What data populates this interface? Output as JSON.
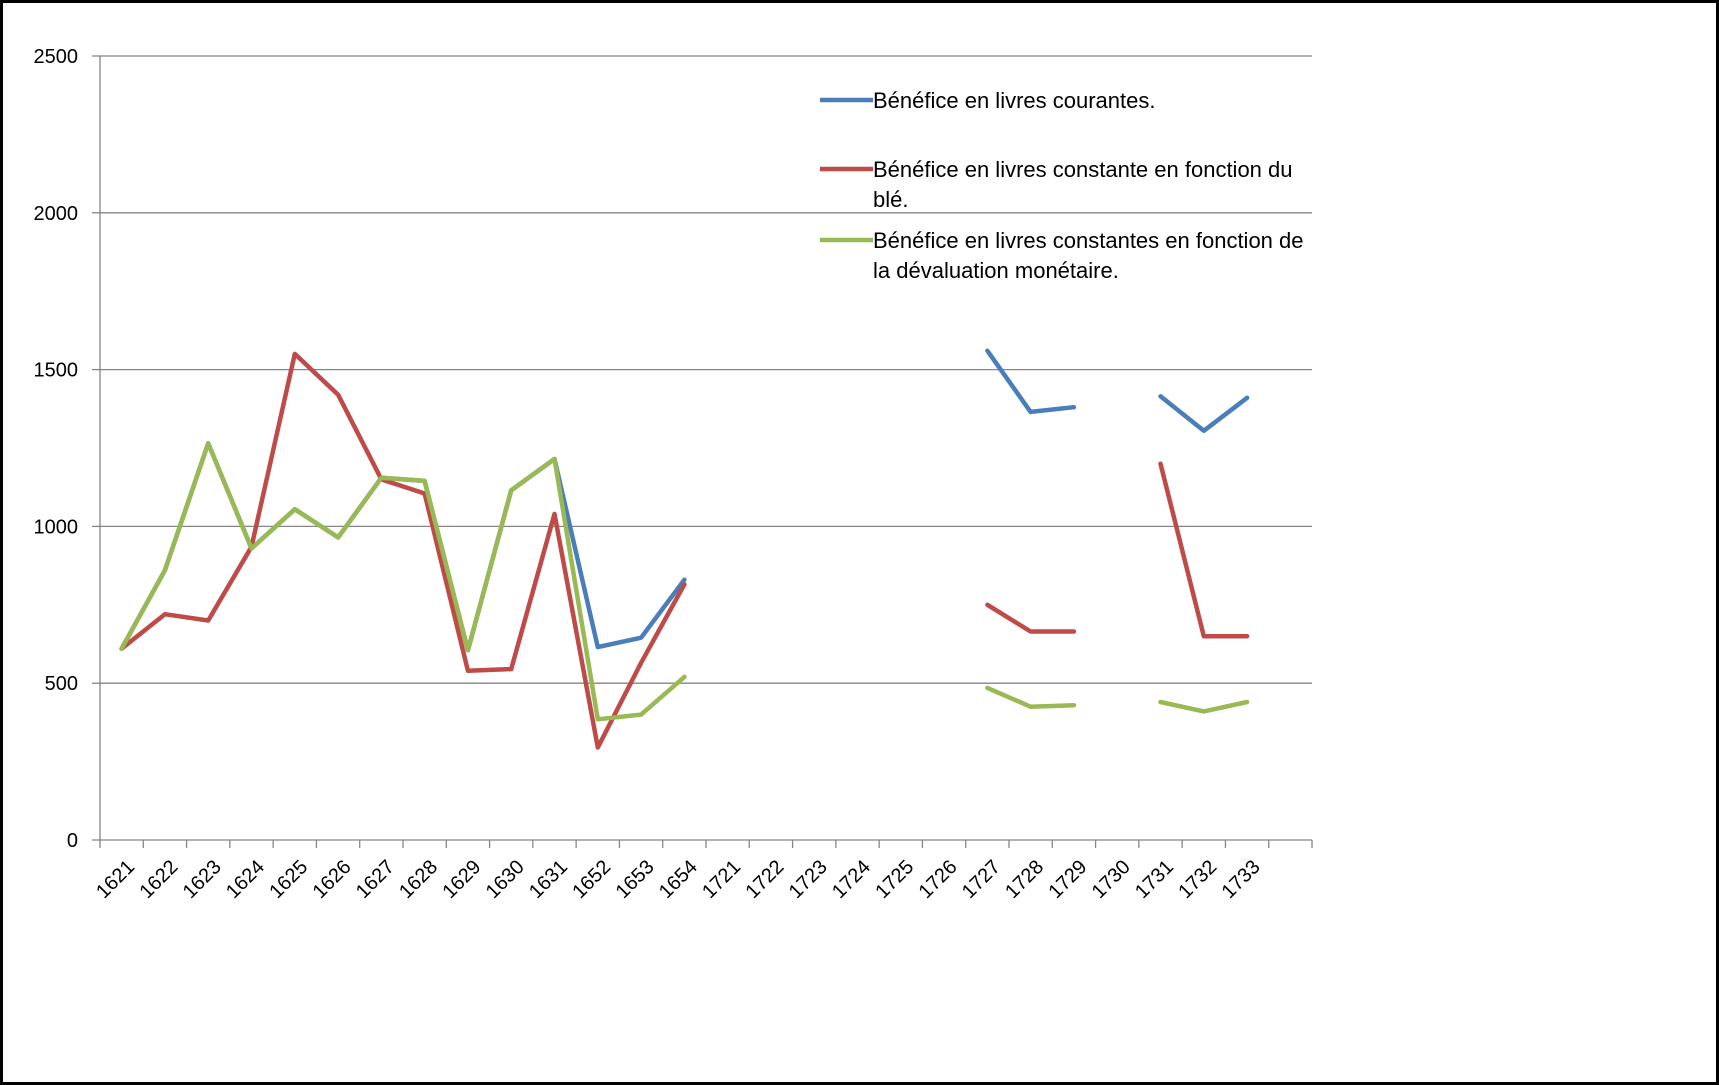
{
  "chart_data": {
    "type": "line",
    "categories": [
      "1621",
      "1622",
      "1623",
      "1624",
      "1625",
      "1626",
      "1627",
      "1628",
      "1629",
      "1630",
      "1631",
      "1652",
      "1653",
      "1654",
      "1721",
      "1722",
      "1723",
      "1724",
      "1725",
      "1726",
      "1727",
      "1728",
      "1729",
      "1730",
      "1731",
      "1732",
      "1733"
    ],
    "ylim": [
      0,
      2500
    ],
    "yticks": [
      0,
      500,
      1000,
      1500,
      2000,
      2500
    ],
    "grid": true,
    "legend_position": "top-right",
    "series": [
      {
        "name": "Bénéfice en livres courantes.",
        "name_lines": [
          "Bénéfice en livres courantes."
        ],
        "color": "#4a7ebb",
        "values": [
          610,
          860,
          1265,
          930,
          1055,
          965,
          1155,
          1145,
          605,
          1115,
          1215,
          615,
          645,
          830,
          null,
          null,
          null,
          null,
          null,
          null,
          1560,
          1365,
          1380,
          null,
          1415,
          1305,
          1410
        ]
      },
      {
        "name": "Bénéfice en livres constante en fonction du blé.",
        "name_lines": [
          "Bénéfice en livres constante en fonction du",
          "blé."
        ],
        "color": "#be4b48",
        "values": [
          610,
          720,
          700,
          935,
          1550,
          1420,
          1150,
          1105,
          540,
          545,
          1040,
          295,
          565,
          815,
          null,
          null,
          null,
          null,
          null,
          null,
          750,
          665,
          665,
          null,
          1200,
          650,
          650
        ]
      },
      {
        "name": "Bénéfice en livres constantes en fonction de la dévaluation monétaire.",
        "name_lines": [
          "Bénéfice en livres constantes en fonction de",
          "la dévaluation monétaire."
        ],
        "color": "#98b954",
        "values": [
          610,
          860,
          1265,
          930,
          1055,
          965,
          1155,
          1145,
          605,
          1115,
          1215,
          385,
          400,
          520,
          null,
          null,
          null,
          null,
          null,
          null,
          485,
          425,
          430,
          null,
          440,
          410,
          440
        ]
      }
    ]
  }
}
